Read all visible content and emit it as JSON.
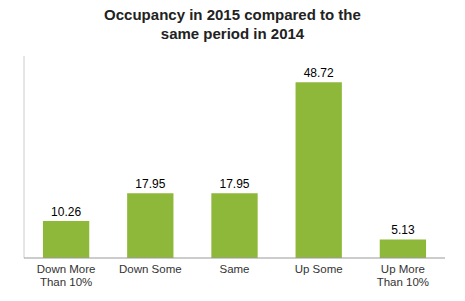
{
  "chart_data": {
    "type": "bar",
    "title": "Occupancy in 2015 compared to the\nsame period in 2014",
    "categories": [
      "Down More\nThan 10%",
      "Down Some",
      "Same",
      "Up Some",
      "Up More\nThan 10%"
    ],
    "values": [
      10.26,
      17.95,
      17.95,
      48.72,
      5.13
    ],
    "color": "#8db83a",
    "ylim": [
      0,
      56
    ],
    "grid": false,
    "data_labels": true,
    "tick_labels": "x"
  }
}
